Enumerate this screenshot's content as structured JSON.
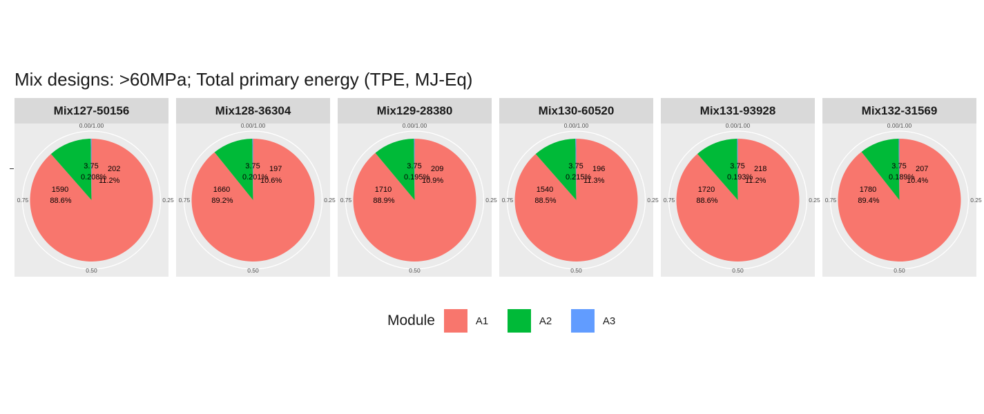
{
  "title": "Mix designs: >60MPa; Total primary energy (TPE, MJ-Eq)",
  "legend": {
    "title": "Module",
    "items": [
      {
        "label": "A1",
        "color": "#F8766D"
      },
      {
        "label": "A2",
        "color": "#00BA38"
      },
      {
        "label": "A3",
        "color": "#619CFF"
      }
    ]
  },
  "chart_data": {
    "type": "pie",
    "title": "Mix designs: >60MPa; Total primary energy (TPE, MJ-Eq)",
    "axis_ticks": [
      "0.00/1.00",
      "0.25",
      "0.50",
      "0.75"
    ],
    "series_names": [
      "A1",
      "A2",
      "A3"
    ],
    "grid": true,
    "legend_position": "bottom",
    "panels": [
      {
        "name": "Mix127-50156",
        "slices": [
          {
            "module": "A1",
            "value": 1590,
            "value_label": "1590",
            "percent_label": "88.6%",
            "fraction": 0.886
          },
          {
            "module": "A2",
            "value": 202,
            "value_label": "202",
            "percent_label": "11.2%",
            "fraction": 0.112
          },
          {
            "module": "A3",
            "value": 3.75,
            "value_label": "3.75",
            "percent_label": "0.208%",
            "fraction": 0.00208
          }
        ]
      },
      {
        "name": "Mix128-36304",
        "slices": [
          {
            "module": "A1",
            "value": 1660,
            "value_label": "1660",
            "percent_label": "89.2%",
            "fraction": 0.892
          },
          {
            "module": "A2",
            "value": 197,
            "value_label": "197",
            "percent_label": "10.6%",
            "fraction": 0.106
          },
          {
            "module": "A3",
            "value": 3.75,
            "value_label": "3.75",
            "percent_label": "0.201%",
            "fraction": 0.00201
          }
        ]
      },
      {
        "name": "Mix129-28380",
        "slices": [
          {
            "module": "A1",
            "value": 1710,
            "value_label": "1710",
            "percent_label": "88.9%",
            "fraction": 0.889
          },
          {
            "module": "A2",
            "value": 209,
            "value_label": "209",
            "percent_label": "10.9%",
            "fraction": 0.109
          },
          {
            "module": "A3",
            "value": 3.75,
            "value_label": "3.75",
            "percent_label": "0.195%",
            "fraction": 0.00195
          }
        ]
      },
      {
        "name": "Mix130-60520",
        "slices": [
          {
            "module": "A1",
            "value": 1540,
            "value_label": "1540",
            "percent_label": "88.5%",
            "fraction": 0.885
          },
          {
            "module": "A2",
            "value": 196,
            "value_label": "196",
            "percent_label": "11.3%",
            "fraction": 0.113
          },
          {
            "module": "A3",
            "value": 3.75,
            "value_label": "3.75",
            "percent_label": "0.215%",
            "fraction": 0.00215
          }
        ]
      },
      {
        "name": "Mix131-93928",
        "slices": [
          {
            "module": "A1",
            "value": 1720,
            "value_label": "1720",
            "percent_label": "88.6%",
            "fraction": 0.886
          },
          {
            "module": "A2",
            "value": 218,
            "value_label": "218",
            "percent_label": "11.2%",
            "fraction": 0.112
          },
          {
            "module": "A3",
            "value": 3.75,
            "value_label": "3.75",
            "percent_label": "0.193%",
            "fraction": 0.00193
          }
        ]
      },
      {
        "name": "Mix132-31569",
        "slices": [
          {
            "module": "A1",
            "value": 1780,
            "value_label": "1780",
            "percent_label": "89.4%",
            "fraction": 0.894
          },
          {
            "module": "A2",
            "value": 207,
            "value_label": "207",
            "percent_label": "10.4%",
            "fraction": 0.104
          },
          {
            "module": "A3",
            "value": 3.75,
            "value_label": "3.75",
            "percent_label": "0.189%",
            "fraction": 0.00189
          }
        ]
      }
    ]
  }
}
